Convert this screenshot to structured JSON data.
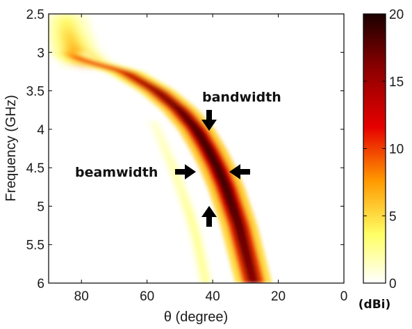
{
  "chart_data": {
    "type": "heatmap",
    "title": "",
    "xlabel": "θ (degree)",
    "ylabel": "Frequency (GHz)",
    "xlim": [
      90,
      0
    ],
    "ylim": [
      2.5,
      6
    ],
    "x_ticks": [
      "80",
      "60",
      "40",
      "20",
      "0"
    ],
    "x_tick_values": [
      80,
      60,
      40,
      20,
      0
    ],
    "y_ticks": [
      "2.5",
      "3",
      "3.5",
      "4",
      "4.5",
      "5",
      "5.5",
      "6"
    ],
    "y_tick_values": [
      2.5,
      3,
      3.5,
      4,
      4.5,
      5,
      5.5,
      6
    ],
    "colorbar": {
      "min": 0,
      "max": 20,
      "ticks": [
        "0",
        "5",
        "10",
        "15",
        "20"
      ],
      "tick_values": [
        0,
        5,
        10,
        15,
        20
      ],
      "unit": "(dBi)",
      "colormap": "hot-reversed",
      "colors": [
        "#ffffff",
        "#ffff66",
        "#ff9900",
        "#e60000",
        "#8b0000",
        "#1a0000"
      ]
    },
    "main_beam": {
      "frequency_ghz": [
        3.0,
        3.1,
        3.25,
        3.5,
        3.75,
        4.0,
        4.25,
        4.5,
        4.75,
        5.0,
        5.25,
        5.5,
        5.75,
        6.0
      ],
      "theta_deg": [
        84,
        80,
        67,
        57,
        50,
        45,
        41.5,
        38.5,
        36,
        34,
        32,
        30.5,
        29,
        27.5
      ],
      "peak_dbi": [
        6,
        10,
        12.5,
        15.5,
        17,
        18,
        18.5,
        18.5,
        18.5,
        18,
        17.5,
        17,
        16.5,
        16
      ]
    },
    "grating_lobe": {
      "frequency_ghz": [
        2.5,
        2.75,
        3.0,
        3.15
      ],
      "theta_deg": [
        85,
        84,
        82,
        78
      ],
      "peak_dbi": [
        3,
        5,
        7,
        9
      ]
    },
    "side_lobe": {
      "frequency_ghz": [
        3.9,
        4.2,
        4.5,
        4.8,
        5.1,
        5.4,
        5.7,
        6.0
      ],
      "theta_deg": [
        58,
        55,
        52,
        49.5,
        47,
        45,
        43.5,
        42
      ],
      "peak_dbi": [
        1,
        1.5,
        2,
        2,
        2.5,
        2.5,
        2.5,
        2.5
      ]
    },
    "annotations": [
      {
        "text": "bandwidth"
      },
      {
        "text": "beamwidth"
      }
    ]
  }
}
